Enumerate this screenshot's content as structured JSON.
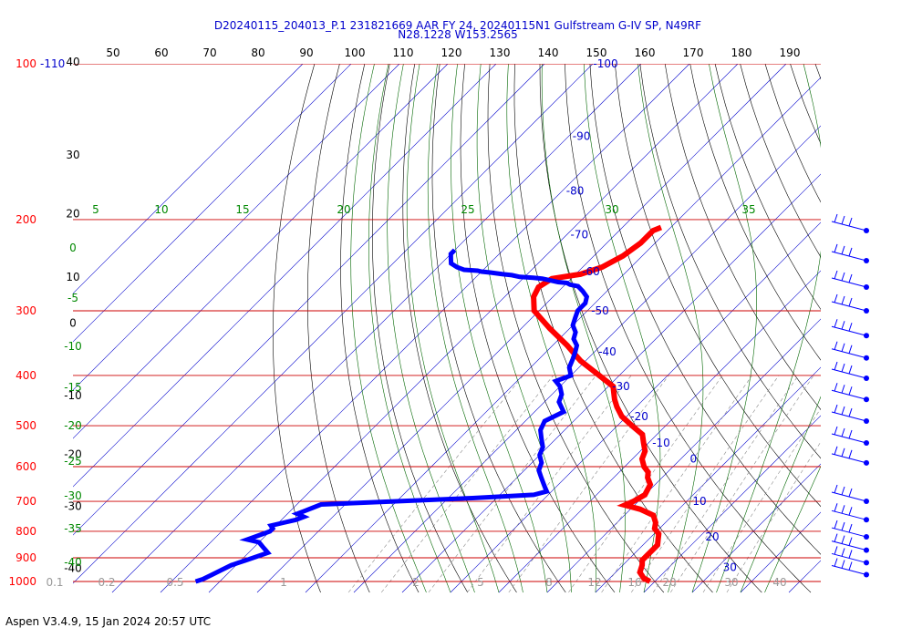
{
  "chart_data": {
    "type": "skew-t log-p sounding",
    "title_line1": "D20240115_204013_P.1 231821669 AAR FY 24, 20240115N1 Gulfstream G-IV SP, N49RF",
    "title_line2": "N28.1228 W153.2565",
    "footer": "Aspen V3.4.9, 15 Jan 2024  20:57 UTC",
    "pressure_levels_hPa": [
      100,
      200,
      300,
      400,
      500,
      600,
      700,
      800,
      900,
      1000
    ],
    "pressure_labels": [
      "100",
      "200",
      "300",
      "400",
      "500",
      "600",
      "700",
      "800",
      "900",
      "1000"
    ],
    "top_pressure_extra_label": "-110",
    "top_axis_labels": [
      "40",
      "50",
      "60",
      "70",
      "80",
      "90",
      "100",
      "110",
      "120",
      "130",
      "140",
      "150",
      "160",
      "170",
      "180",
      "190"
    ],
    "left_axis_labels": [
      {
        "label": "30",
        "p": 150
      },
      {
        "label": "20",
        "p": 195
      },
      {
        "label": "10",
        "p": 258
      },
      {
        "label": "0",
        "p": 317
      },
      {
        "label": "-10",
        "p": 437
      },
      {
        "label": "-20",
        "p": 568
      },
      {
        "label": "-30",
        "p": 716
      },
      {
        "label": "-40",
        "p": 943
      }
    ],
    "top_left_label": "40",
    "isotherm_labels": [
      {
        "t": -100,
        "label": "-100"
      },
      {
        "t": -90,
        "label": "-90"
      },
      {
        "t": -80,
        "label": "-80"
      },
      {
        "t": -70,
        "label": "-70"
      },
      {
        "t": -60,
        "label": "-60"
      },
      {
        "t": -50,
        "label": "-50"
      },
      {
        "t": -40,
        "label": "-40"
      },
      {
        "t": -30,
        "label": "-30"
      },
      {
        "t": -20,
        "label": "-20"
      },
      {
        "t": -10,
        "label": "-10"
      },
      {
        "t": 0,
        "label": "0"
      },
      {
        "t": 10,
        "label": "10"
      },
      {
        "t": 20,
        "label": "20"
      },
      {
        "t": 30,
        "label": "30"
      }
    ],
    "moist_adiabat_labels": [
      "5",
      "10",
      "15",
      "20",
      "25",
      "30",
      "35"
    ],
    "dry_adiabat_labels": [
      "0",
      "-5",
      "-10",
      "-15",
      "-20",
      "-25",
      "-30",
      "-35",
      "-40"
    ],
    "mixing_ratio_labels": [
      "0.1",
      "0.2",
      "0.5",
      "1",
      "2",
      "5",
      "8",
      "12",
      "16",
      "20",
      "30",
      "40"
    ],
    "temperature_series": {
      "name": "Temperature",
      "color": "#ff0000",
      "p": [
        207,
        210,
        222,
        235,
        247,
        255,
        260,
        270,
        282,
        300,
        325,
        350,
        375,
        393,
        420,
        445,
        460,
        480,
        500,
        520,
        540,
        560,
        580,
        600,
        615,
        630,
        650,
        680,
        700,
        712,
        725,
        745,
        770,
        790,
        810,
        830,
        850,
        870,
        890,
        910,
        930,
        960,
        985,
        1000
      ],
      "t": [
        -52,
        -53,
        -53,
        -54,
        -56,
        -59,
        -64,
        -65,
        -64,
        -61,
        -54,
        -47,
        -41,
        -36,
        -29,
        -26,
        -24,
        -21,
        -17,
        -13,
        -11,
        -9,
        -8,
        -6,
        -4,
        -3,
        -1,
        0,
        -1,
        -2,
        2,
        6,
        8,
        9,
        11,
        12,
        13,
        13,
        13,
        13,
        14,
        15,
        17,
        19
      ]
    },
    "dewpoint_series": {
      "name": "Dewpoint",
      "color": "#0000ff",
      "p": [
        229,
        233,
        238,
        243,
        247,
        250,
        251,
        252,
        253,
        255,
        256,
        258,
        259,
        260,
        262,
        264,
        265,
        267,
        269,
        275,
        282,
        290,
        300,
        310,
        320,
        330,
        340,
        350,
        360,
        372,
        386,
        400,
        410,
        420,
        435,
        450,
        470,
        490,
        510,
        530,
        550,
        570,
        590,
        610,
        630,
        650,
        660,
        670,
        680,
        690,
        700,
        710,
        720,
        730,
        740,
        750,
        760,
        770,
        780,
        790,
        800,
        810,
        820,
        830,
        840,
        850,
        860,
        870,
        880,
        890,
        900,
        910,
        920,
        930,
        950,
        970,
        990,
        1000
      ],
      "t": [
        -90,
        -90,
        -89,
        -88,
        -86,
        -84,
        -81,
        -80,
        -78,
        -75,
        -73,
        -71,
        -68,
        -66,
        -64,
        -62,
        -60,
        -59,
        -57,
        -55,
        -53,
        -52,
        -52,
        -51,
        -50,
        -48,
        -47,
        -45,
        -44,
        -43,
        -42,
        -40,
        -42,
        -40,
        -38,
        -37,
        -34,
        -36,
        -35,
        -33,
        -31,
        -30,
        -28,
        -27,
        -25,
        -23,
        -22,
        -21,
        -23,
        -35,
        -50,
        -65,
        -66,
        -67,
        -68,
        -66,
        -67,
        -69,
        -71,
        -70,
        -70,
        -71,
        -72,
        -73,
        -70,
        -69,
        -68,
        -67,
        -66,
        -67,
        -68,
        -69,
        -70,
        -71,
        -72,
        -73,
        -74,
        -75
      ]
    },
    "wind_barb_pressures": [
      210,
      240,
      270,
      300,
      335,
      370,
      405,
      445,
      490,
      540,
      590,
      700,
      760,
      820,
      870,
      920,
      970
    ]
  }
}
